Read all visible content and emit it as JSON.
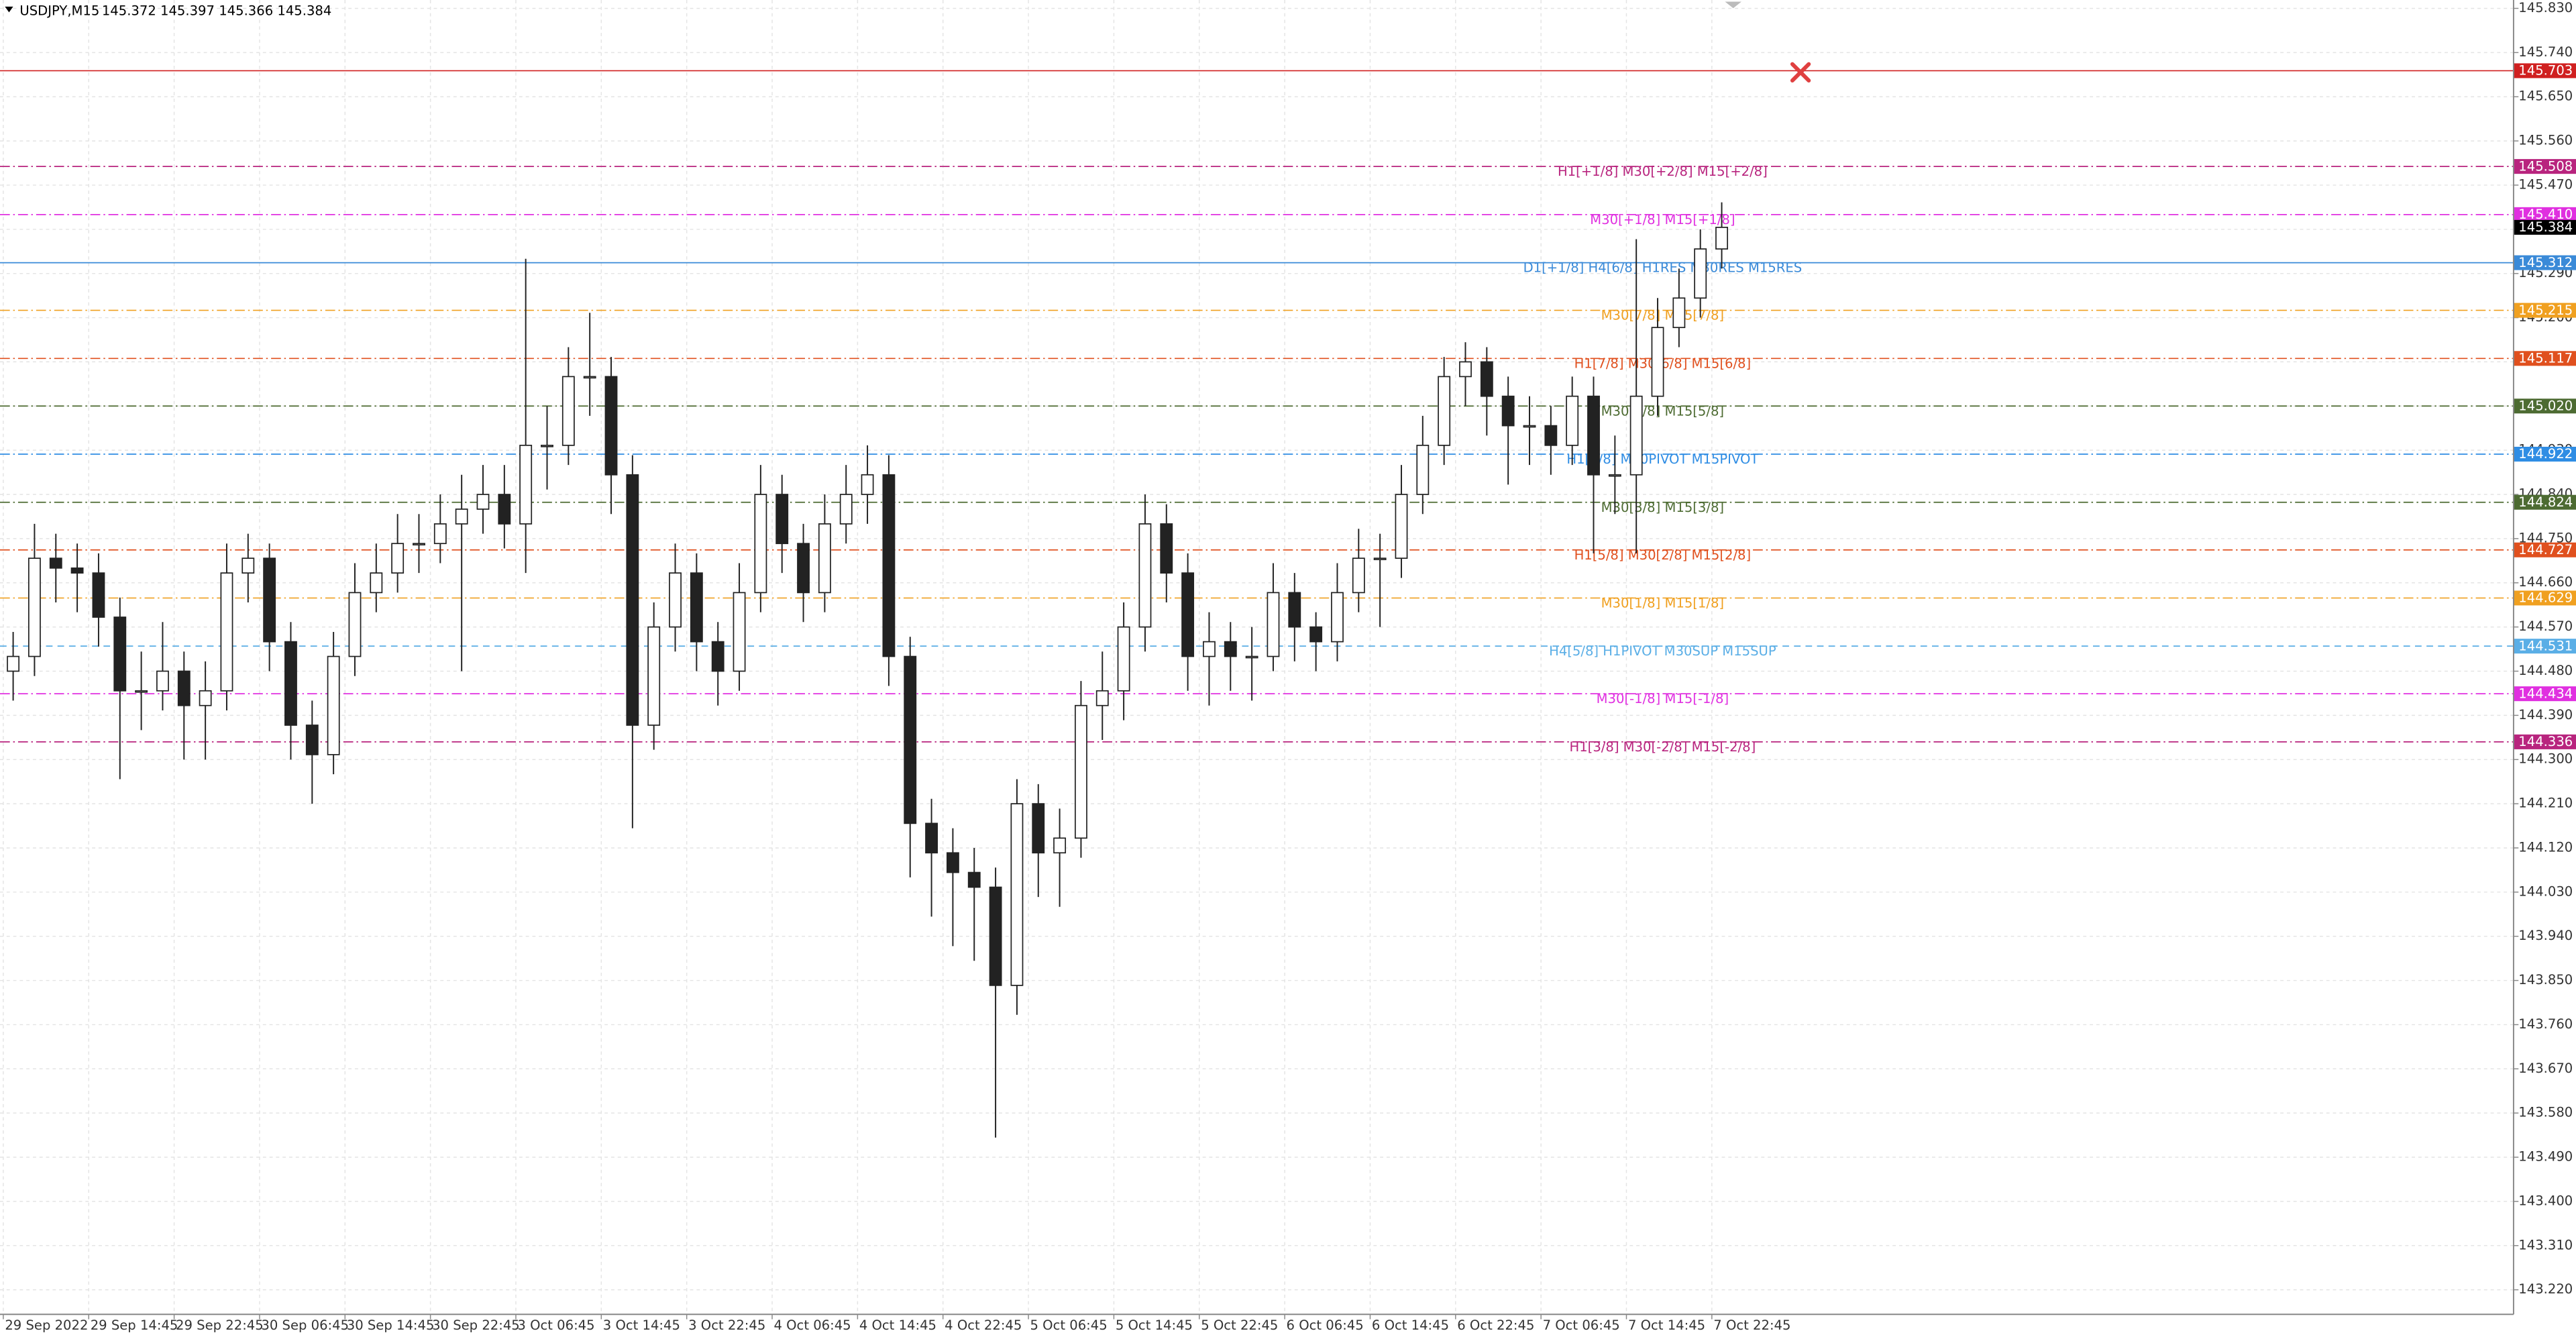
{
  "chart_data": {
    "type": "candlestick",
    "title": "USDJPY,M15",
    "subtitle": "145.372 145.397 145.366 145.384",
    "categories": [
      "29 Sep 2022",
      null,
      null,
      null,
      "29 Sep 14:45",
      null,
      null,
      null,
      "29 Sep 22:45",
      null,
      null,
      null,
      "30 Sep 06:45",
      null,
      null,
      null,
      "30 Sep 14:45",
      null,
      null,
      null,
      "30 Sep 22:45",
      null,
      null,
      null,
      "3 Oct 06:45",
      null,
      null,
      null,
      "3 Oct 14:45",
      null,
      null,
      null,
      "3 Oct 22:45",
      null,
      null,
      null,
      "4 Oct 06:45",
      null,
      null,
      null,
      "4 Oct 14:45",
      null,
      null,
      null,
      "4 Oct 22:45",
      null,
      null,
      null,
      "5 Oct 06:45",
      null,
      null,
      null,
      "5 Oct 14:45",
      null,
      null,
      null,
      "5 Oct 22:45",
      null,
      null,
      null,
      "6 Oct 06:45",
      null,
      null,
      null,
      "6 Oct 14:45",
      null,
      null,
      null,
      "6 Oct 22:45",
      null,
      null,
      null,
      "7 Oct 06:45",
      null,
      null,
      null,
      "7 Oct 14:45",
      null,
      null,
      null,
      "7 Oct 22:45"
    ],
    "open": [
      144.48,
      144.51,
      144.71,
      144.69,
      144.68,
      144.59,
      144.44,
      144.44,
      144.48,
      144.41,
      144.44,
      144.68,
      144.71,
      144.54,
      144.37,
      144.31,
      144.51,
      144.64,
      144.68,
      144.74,
      144.74,
      144.78,
      144.81,
      144.84,
      144.78,
      144.94,
      144.94,
      145.08,
      145.08,
      144.88,
      144.37,
      144.57,
      144.68,
      144.54,
      144.48,
      144.64,
      144.84,
      144.74,
      144.64,
      144.78,
      144.84,
      144.88,
      144.51,
      144.17,
      144.11,
      144.07,
      144.04,
      143.84,
      144.21,
      144.11,
      144.14,
      144.41,
      144.44,
      144.57,
      144.78,
      144.68,
      144.51,
      144.54,
      144.51,
      144.51,
      144.64,
      144.57,
      144.54,
      144.64,
      144.71,
      144.71,
      144.84,
      144.94,
      145.08,
      145.11,
      145.04,
      144.98,
      144.98,
      144.94,
      145.04,
      144.88,
      144.88,
      145.04,
      145.18,
      145.24,
      145.34
    ],
    "high": [
      144.56,
      144.78,
      144.76,
      144.74,
      144.72,
      144.63,
      144.52,
      144.58,
      144.52,
      144.5,
      144.74,
      144.76,
      144.74,
      144.58,
      144.42,
      144.56,
      144.7,
      144.74,
      144.8,
      144.8,
      144.84,
      144.88,
      144.9,
      144.9,
      145.32,
      145.02,
      145.14,
      145.21,
      145.12,
      144.92,
      144.62,
      144.74,
      144.72,
      144.58,
      144.7,
      144.9,
      144.88,
      144.78,
      144.84,
      144.9,
      144.94,
      144.92,
      144.55,
      144.22,
      144.16,
      144.12,
      144.08,
      144.26,
      144.25,
      144.2,
      144.46,
      144.52,
      144.62,
      144.84,
      144.82,
      144.72,
      144.6,
      144.58,
      144.57,
      144.7,
      144.68,
      144.6,
      144.7,
      144.77,
      144.76,
      144.9,
      145.0,
      145.12,
      145.15,
      145.14,
      145.08,
      145.04,
      145.02,
      145.08,
      145.08,
      144.96,
      145.36,
      145.24,
      145.3,
      145.38,
      145.435
    ],
    "low": [
      144.42,
      144.47,
      144.62,
      144.6,
      144.53,
      144.26,
      144.36,
      144.4,
      144.3,
      144.3,
      144.4,
      144.62,
      144.48,
      144.3,
      144.21,
      144.27,
      144.47,
      144.6,
      144.64,
      144.68,
      144.7,
      144.48,
      144.76,
      144.73,
      144.68,
      144.85,
      144.9,
      145.0,
      144.8,
      144.16,
      144.32,
      144.52,
      144.48,
      144.41,
      144.44,
      144.6,
      144.68,
      144.58,
      144.6,
      144.74,
      144.78,
      144.45,
      144.06,
      143.98,
      143.92,
      143.89,
      143.53,
      143.78,
      144.02,
      144.0,
      144.1,
      144.34,
      144.38,
      144.52,
      144.62,
      144.44,
      144.41,
      144.44,
      144.42,
      144.48,
      144.5,
      144.48,
      144.5,
      144.6,
      144.57,
      144.67,
      144.8,
      144.9,
      145.02,
      144.96,
      144.86,
      144.9,
      144.88,
      144.9,
      144.72,
      144.8,
      144.72,
      145.0,
      145.14,
      145.2,
      145.3
    ],
    "close": [
      144.51,
      144.71,
      144.69,
      144.68,
      144.59,
      144.44,
      144.44,
      144.48,
      144.41,
      144.44,
      144.68,
      144.71,
      144.54,
      144.37,
      144.31,
      144.51,
      144.64,
      144.68,
      144.74,
      144.74,
      144.78,
      144.81,
      144.84,
      144.78,
      144.94,
      144.94,
      145.08,
      145.08,
      144.88,
      144.37,
      144.57,
      144.68,
      144.54,
      144.48,
      144.64,
      144.84,
      144.74,
      144.64,
      144.78,
      144.84,
      144.88,
      144.51,
      144.17,
      144.11,
      144.07,
      144.04,
      143.84,
      144.21,
      144.11,
      144.14,
      144.41,
      144.44,
      144.57,
      144.78,
      144.68,
      144.51,
      144.54,
      144.51,
      144.51,
      144.64,
      144.57,
      144.54,
      144.64,
      144.71,
      144.71,
      144.84,
      144.94,
      145.08,
      145.11,
      145.04,
      144.98,
      144.98,
      144.94,
      145.04,
      144.88,
      144.88,
      145.04,
      145.18,
      145.24,
      145.34,
      145.384
    ],
    "ylim": [
      143.17,
      145.847
    ],
    "yticks": [
      {
        "value": 145.83,
        "label": "145.830"
      },
      {
        "value": 145.74,
        "label": "145.740"
      },
      {
        "value": 145.65,
        "label": "145.650"
      },
      {
        "value": 145.56,
        "label": "145.560"
      },
      {
        "value": 145.47,
        "label": "145.470"
      },
      {
        "value": 145.38,
        "label": "145.380"
      },
      {
        "value": 145.29,
        "label": "145.290"
      },
      {
        "value": 145.2,
        "label": "145.200"
      },
      {
        "value": 145.11,
        "label": "145.110"
      },
      {
        "value": 145.02,
        "label": "145.020"
      },
      {
        "value": 144.93,
        "label": "144.930"
      },
      {
        "value": 144.84,
        "label": "144.840"
      },
      {
        "value": 144.75,
        "label": "144.750"
      },
      {
        "value": 144.66,
        "label": "144.660"
      },
      {
        "value": 144.57,
        "label": "144.570"
      },
      {
        "value": 144.48,
        "label": "144.480"
      },
      {
        "value": 144.39,
        "label": "144.390"
      },
      {
        "value": 144.3,
        "label": "144.300"
      },
      {
        "value": 144.21,
        "label": "144.210"
      },
      {
        "value": 144.12,
        "label": "144.120"
      },
      {
        "value": 144.03,
        "label": "144.030"
      },
      {
        "value": 143.94,
        "label": "143.940"
      },
      {
        "value": 143.85,
        "label": "143.850"
      },
      {
        "value": 143.76,
        "label": "143.760"
      },
      {
        "value": 143.67,
        "label": "143.670"
      },
      {
        "value": 143.58,
        "label": "143.580"
      },
      {
        "value": 143.49,
        "label": "143.490"
      },
      {
        "value": 143.4,
        "label": "143.400"
      },
      {
        "value": 143.31,
        "label": "143.310"
      },
      {
        "value": 143.22,
        "label": "143.220"
      }
    ],
    "grid": true,
    "up_color": "#ffffff",
    "down_color": "#222222",
    "outline_color": "#222222",
    "current_price_color": "#000000",
    "levels": [
      {
        "value": 145.703,
        "color": "#d02020",
        "style": "solid"
      },
      {
        "value": 145.508,
        "color": "#b8247e",
        "style": "dashdot",
        "label": "H1[+1/8] M30[+2/8] M15[+2/8]"
      },
      {
        "value": 145.41,
        "value_label": "145.410",
        "color": "#e030e0",
        "style": "dashdot",
        "label": "M30[+1/8] M15[+1/8]"
      },
      {
        "value": 145.312,
        "color": "#3a8ad8",
        "style": "solid",
        "label": "D1[+1/8] H4[6/8] H1RES M30RES M15RES"
      },
      {
        "value": 145.215,
        "color": "#f0a020",
        "style": "dashdot",
        "label": "M30[7/8] M15[7/8]"
      },
      {
        "value": 145.117,
        "color": "#e0501e",
        "style": "dashdot",
        "label": "H1[7/8] M30[6/8] M15[6/8]"
      },
      {
        "value": 145.02,
        "value_label": "145.020",
        "color": "#4d6b32",
        "style": "dashdot",
        "label": "M30[5/8] M15[5/8]"
      },
      {
        "value": 144.922,
        "color": "#2f8de4",
        "style": "dashdot",
        "label": "H1[6/8] M30PIVOT M15PIVOT"
      },
      {
        "value": 144.824,
        "color": "#4d6b32",
        "style": "dashdot",
        "label": "M30[3/8] M15[3/8]"
      },
      {
        "value": 144.727,
        "color": "#e0501e",
        "style": "dashdot",
        "label": "H1[5/8] M30[2/8] M15[2/8]"
      },
      {
        "value": 144.629,
        "color": "#f0a020",
        "style": "dashdot",
        "label": "M30[1/8] M15[1/8]"
      },
      {
        "value": 144.531,
        "color": "#5aaee6",
        "style": "dashed",
        "label": "H4[5/8] H1PIVOT M30SUP M15SUP"
      },
      {
        "value": 144.434,
        "color": "#e030e0",
        "style": "dashdot",
        "label": "M30[-1/8] M15[-1/8]"
      },
      {
        "value": 144.336,
        "color": "#b8247e",
        "style": "dashdot",
        "label": "H1[3/8] M30[-2/8] M15[-2/8]"
      }
    ]
  }
}
